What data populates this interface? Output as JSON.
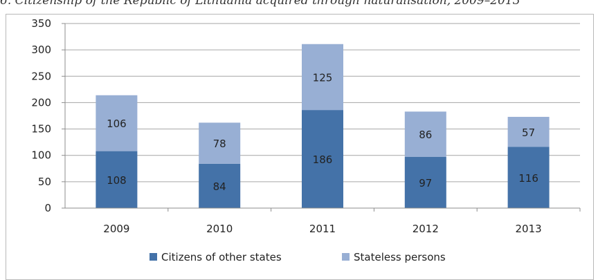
{
  "caption": "6. Citizenship of the Republic of Lithuania acquired through naturalisation, 2009–2013",
  "chart_data": {
    "type": "bar",
    "stacked": true,
    "categories": [
      "2009",
      "2010",
      "2011",
      "2012",
      "2013"
    ],
    "series": [
      {
        "name": "Citizens of other states",
        "values": [
          108,
          84,
          186,
          97,
          116
        ],
        "color": "#4472a8"
      },
      {
        "name": "Stateless persons",
        "values": [
          106,
          78,
          125,
          86,
          57
        ],
        "color": "#98afd4"
      }
    ],
    "yticks": [
      0,
      50,
      100,
      150,
      200,
      250,
      300,
      350
    ],
    "ylim": [
      0,
      350
    ],
    "grid": true,
    "legend": "bottom"
  }
}
